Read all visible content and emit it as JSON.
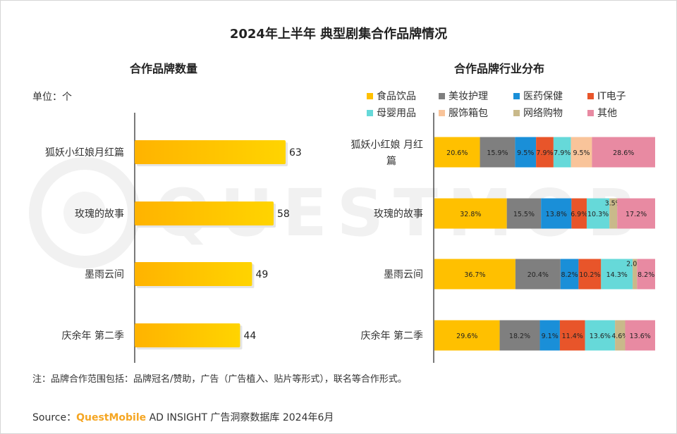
{
  "title": "2024年上半年 典型剧集合作品牌情况",
  "left_chart": {
    "subtitle": "合作品牌数量",
    "unit": "单位：个"
  },
  "right_chart": {
    "subtitle": "合作品牌行业分布"
  },
  "note": "注：品牌合作范围包括：品牌冠名/赞助，广告（广告植入、贴片等形式），联名等合作形式。",
  "source": {
    "prefix": "Source：",
    "brand": "QuestMobile",
    "rest": " AD INSIGHT 广告洞察数据库 2024年6月"
  },
  "watermark": "QUESTMOBILE",
  "chart_data": [
    {
      "type": "bar",
      "orientation": "horizontal",
      "title": "合作品牌数量",
      "unit": "个",
      "categories": [
        "狐妖小红娘月红篇",
        "玫瑰的故事",
        "墨雨云间",
        "庆余年 第二季"
      ],
      "values": [
        63,
        58,
        49,
        44
      ],
      "color": "#ffc000"
    },
    {
      "type": "bar",
      "orientation": "horizontal",
      "stacked": true,
      "percent": true,
      "title": "合作品牌行业分布",
      "categories": [
        "狐妖小红娘 月红篇",
        "玫瑰的故事",
        "墨雨云间",
        "庆余年 第二季"
      ],
      "series": [
        {
          "name": "食品饮品",
          "color": "#ffc000",
          "values": [
            20.6,
            32.8,
            36.7,
            29.6
          ],
          "labels": [
            "20.6%",
            "32.8%",
            "36.7%",
            "29.6%"
          ]
        },
        {
          "name": "美妆护理",
          "color": "#7f7f7f",
          "values": [
            15.9,
            15.5,
            20.4,
            18.2
          ],
          "labels": [
            "15.9%",
            "15.5%",
            "20.4%",
            "18.2%"
          ]
        },
        {
          "name": "医药保健",
          "color": "#1a8fd8",
          "values": [
            9.5,
            13.8,
            8.2,
            9.1
          ],
          "labels": [
            "9.5%",
            "13.8%",
            "8.2%",
            "9.1%"
          ]
        },
        {
          "name": "IT电子",
          "color": "#e8552a",
          "values": [
            7.9,
            6.9,
            10.2,
            11.4
          ],
          "labels": [
            "7.9%",
            "6.9%",
            "10.2%",
            "11.4%"
          ]
        },
        {
          "name": "母婴用品",
          "color": "#66d9d9",
          "values": [
            7.9,
            10.3,
            14.3,
            13.6
          ],
          "labels": [
            "7.9%",
            "10.3%",
            "14.3%",
            "13.6%"
          ]
        },
        {
          "name": "服饰箱包",
          "color": "#f9c49a",
          "values": [
            9.5,
            0,
            0,
            0
          ],
          "labels": [
            "9.5%",
            "",
            "",
            ""
          ]
        },
        {
          "name": "网络购物",
          "color": "#c9b98a",
          "values": [
            0,
            3.5,
            2.0,
            4.6
          ],
          "labels": [
            "",
            "3.5%",
            "2.0%",
            "4.6%"
          ]
        },
        {
          "name": "其他",
          "color": "#e88aa2",
          "values": [
            28.6,
            17.2,
            8.2,
            13.6
          ],
          "labels": [
            "28.6%",
            "17.2%",
            "8.2%",
            "13.6%"
          ]
        }
      ],
      "xlim": [
        0,
        100
      ]
    }
  ]
}
